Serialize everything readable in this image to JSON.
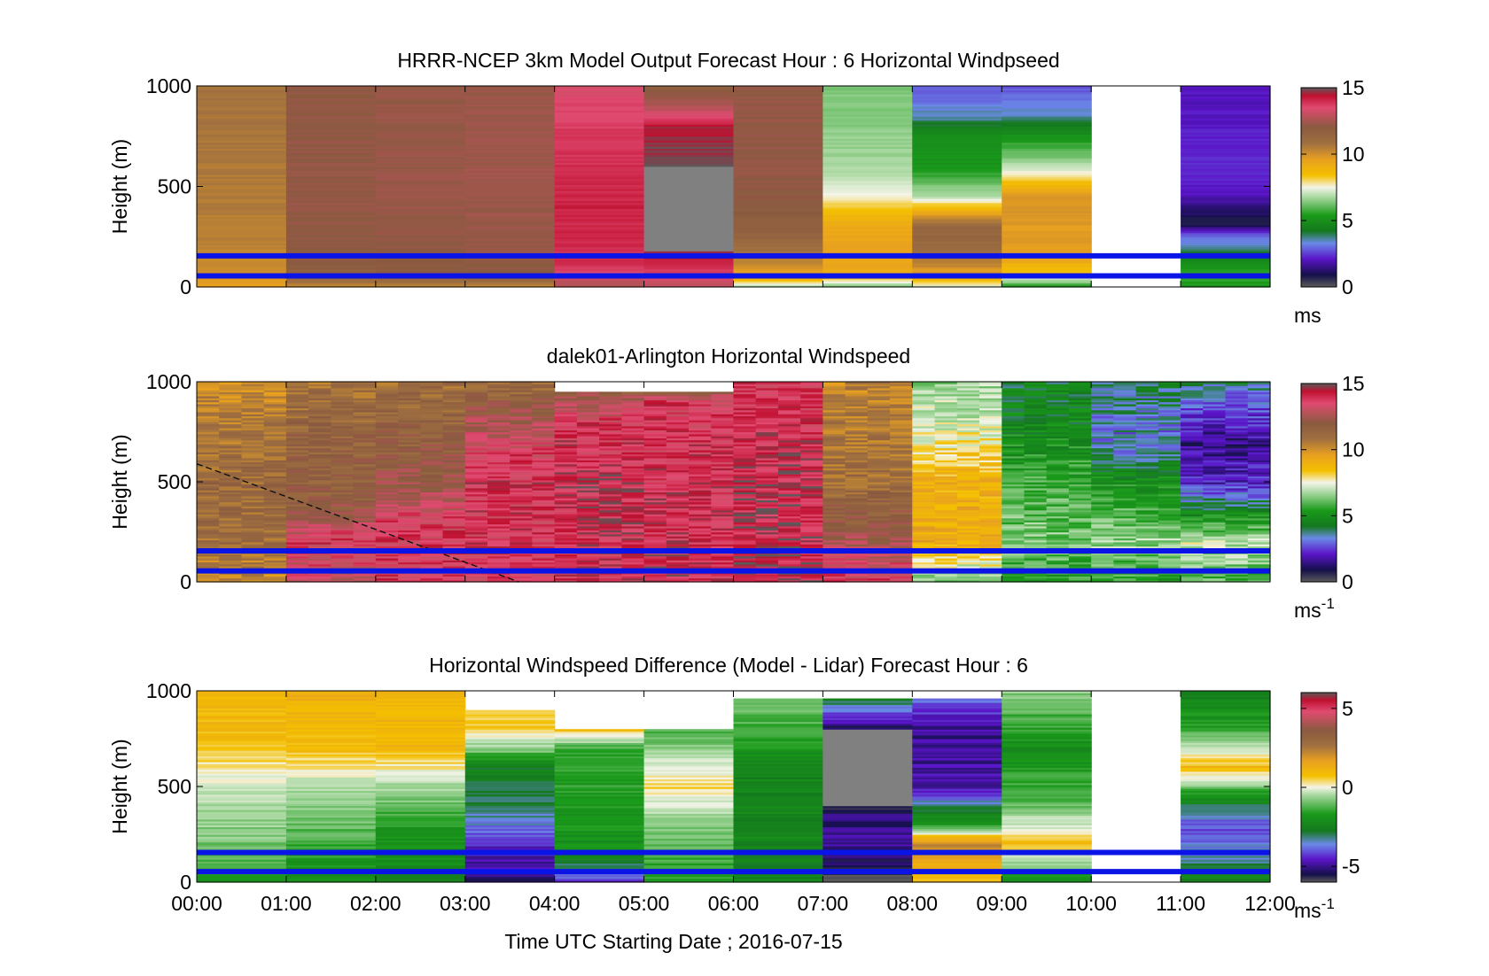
{
  "figure": {
    "xlabel": "Time UTC  Starting Date ; 2016-07-15",
    "x_ticks": [
      "00:00",
      "01:00",
      "02:00",
      "03:00",
      "04:00",
      "05:00",
      "06:00",
      "07:00",
      "08:00",
      "09:00",
      "10:00",
      "11:00",
      "12:00"
    ]
  },
  "chart_data": [
    {
      "type": "heatmap",
      "title": "HRRR-NCEP 3km Model Output   Forecast Hour : 6 Horizontal Windpseed",
      "ylabel": "Height (m)",
      "yticks": [
        "0",
        "500",
        "1000"
      ],
      "ylim": [
        0,
        1000
      ],
      "xlim_hours": [
        0,
        12
      ],
      "colorbar": {
        "ticks": [
          "0",
          "5",
          "10",
          "15"
        ],
        "range": [
          0,
          15
        ],
        "unit_main": "ms",
        "unit_sup": ""
      },
      "marker_lines_height_m": [
        55,
        155
      ],
      "marker_line_color": "#0a14e6",
      "columns": [
        {
          "start_hour": 0,
          "end_hour": 1,
          "profile_ms": [
            [
              0,
              9.5
            ],
            [
              60,
              9.8
            ],
            [
              160,
              10.2
            ],
            [
              400,
              10.5
            ],
            [
              700,
              10.6
            ],
            [
              1000,
              10.8
            ]
          ]
        },
        {
          "start_hour": 1,
          "end_hour": 2,
          "profile_ms": [
            [
              0,
              10.0
            ],
            [
              60,
              11.8
            ],
            [
              160,
              12.0
            ],
            [
              500,
              12.2
            ],
            [
              1000,
              12.1
            ]
          ]
        },
        {
          "start_hour": 2,
          "end_hour": 3,
          "profile_ms": [
            [
              0,
              10.0
            ],
            [
              60,
              11.9
            ],
            [
              160,
              12.1
            ],
            [
              500,
              12.3
            ],
            [
              1000,
              12.2
            ]
          ]
        },
        {
          "start_hour": 3,
          "end_hour": 4,
          "profile_ms": [
            [
              0,
              10.0
            ],
            [
              60,
              12.0
            ],
            [
              160,
              12.2
            ],
            [
              500,
              12.4
            ],
            [
              1000,
              12.3
            ]
          ]
        },
        {
          "start_hour": 4,
          "end_hour": 5,
          "profile_ms": [
            [
              0,
              12.5
            ],
            [
              100,
              14.0
            ],
            [
              400,
              14.2
            ],
            [
              650,
              14.0
            ],
            [
              900,
              13.6
            ],
            [
              1000,
              13.4
            ]
          ]
        },
        {
          "start_hour": 5,
          "end_hour": 6,
          "profile_ms": [
            [
              0,
              13.0
            ],
            [
              150,
              14.5
            ],
            [
              180,
              14.8
            ],
            [
              500,
              null
            ],
            [
              600,
              15.0
            ],
            [
              800,
              14.5
            ],
            [
              900,
              12.8
            ],
            [
              1000,
              11.6
            ]
          ]
        },
        {
          "start_hour": 6,
          "end_hour": 7,
          "profile_ms": [
            [
              0,
              6.5
            ],
            [
              60,
              9.4
            ],
            [
              160,
              10.6
            ],
            [
              300,
              11.8
            ],
            [
              600,
              12.2
            ],
            [
              1000,
              12.2
            ]
          ]
        },
        {
          "start_hour": 7,
          "end_hour": 8,
          "profile_ms": [
            [
              0,
              6.0
            ],
            [
              60,
              9.0
            ],
            [
              160,
              9.5
            ],
            [
              300,
              9.2
            ],
            [
              450,
              7.5
            ],
            [
              600,
              6.6
            ],
            [
              800,
              6.3
            ],
            [
              1000,
              6.2
            ]
          ]
        },
        {
          "start_hour": 8,
          "end_hour": 9,
          "profile_ms": [
            [
              0,
              7.0
            ],
            [
              60,
              9.3
            ],
            [
              160,
              11.0
            ],
            [
              300,
              11.4
            ],
            [
              450,
              6.8
            ],
            [
              600,
              5.0
            ],
            [
              750,
              4.8
            ],
            [
              850,
              3.4
            ],
            [
              1000,
              2.6
            ]
          ]
        },
        {
          "start_hour": 9,
          "end_hour": 10,
          "profile_ms": [
            [
              0,
              5.0
            ],
            [
              60,
              8.0
            ],
            [
              160,
              9.5
            ],
            [
              450,
              9.8
            ],
            [
              600,
              6.8
            ],
            [
              750,
              5.0
            ],
            [
              850,
              3.4
            ],
            [
              1000,
              2.6
            ]
          ]
        },
        {
          "start_hour": 10,
          "end_hour": 11,
          "profile_ms": []
        },
        {
          "start_hour": 11,
          "end_hour": 12,
          "profile_ms": [
            [
              0,
              5.0
            ],
            [
              60,
              5.5
            ],
            [
              160,
              4.0
            ],
            [
              250,
              3.0
            ],
            [
              320,
              0.5
            ],
            [
              450,
              1.8
            ],
            [
              600,
              2.3
            ],
            [
              800,
              2.0
            ],
            [
              1000,
              1.9
            ]
          ]
        }
      ]
    },
    {
      "type": "heatmap",
      "title": "dalek01-Arlington  Horizontal Windspeed",
      "ylabel": "Height (m)",
      "yticks": [
        "0",
        "500",
        "1000"
      ],
      "ylim": [
        0,
        1000
      ],
      "xlim_hours": [
        0,
        12
      ],
      "colorbar": {
        "ticks": [
          "0",
          "5",
          "10",
          "15"
        ],
        "range": [
          0,
          15
        ],
        "unit_main": "ms",
        "unit_sup": "-1"
      },
      "marker_lines_height_m": [
        55,
        155
      ],
      "marker_line_color": "#0a14e6",
      "dashed_line": {
        "from": [
          0,
          590
        ],
        "to": [
          3.6,
          0
        ]
      },
      "columns": [
        {
          "start_hour": 0,
          "end_hour": 1,
          "profile_ms": [
            [
              0,
              10.0
            ],
            [
              200,
              11.0
            ],
            [
              500,
              11.2
            ],
            [
              800,
              10.5
            ],
            [
              1000,
              10.0
            ]
          ]
        },
        {
          "start_hour": 1,
          "end_hour": 2,
          "profile_ms": [
            [
              0,
              13.0
            ],
            [
              200,
              13.8
            ],
            [
              400,
              11.8
            ],
            [
              700,
              11.5
            ],
            [
              1000,
              10.8
            ]
          ]
        },
        {
          "start_hour": 2,
          "end_hour": 3,
          "profile_ms": [
            [
              0,
              13.8
            ],
            [
              300,
              13.8
            ],
            [
              500,
              12.2
            ],
            [
              800,
              11.5
            ],
            [
              1000,
              11.0
            ]
          ]
        },
        {
          "start_hour": 3,
          "end_hour": 4,
          "profile_ms": [
            [
              0,
              13.8
            ],
            [
              600,
              14.0
            ],
            [
              800,
              12.6
            ],
            [
              1000,
              11.0
            ]
          ]
        },
        {
          "start_hour": 4,
          "end_hour": 5,
          "profile_ms": [
            [
              0,
              14.0
            ],
            [
              500,
              14.2
            ],
            [
              800,
              13.8
            ],
            [
              950,
              12.0
            ]
          ]
        },
        {
          "start_hour": 5,
          "end_hour": 6,
          "profile_ms": [
            [
              0,
              14.2
            ],
            [
              500,
              14.0
            ],
            [
              900,
              13.8
            ],
            [
              950,
              12.0
            ]
          ]
        },
        {
          "start_hour": 6,
          "end_hour": 7,
          "profile_ms": [
            [
              0,
              14.4
            ],
            [
              500,
              14.3
            ],
            [
              800,
              14.0
            ],
            [
              1000,
              13.8
            ]
          ]
        },
        {
          "start_hour": 7,
          "end_hour": 8,
          "profile_ms": [
            [
              0,
              13.8
            ],
            [
              300,
              12.0
            ],
            [
              500,
              11.0
            ],
            [
              800,
              10.5
            ],
            [
              1000,
              10.2
            ]
          ]
        },
        {
          "start_hour": 8,
          "end_hour": 9,
          "profile_ms": [
            [
              0,
              6.0
            ],
            [
              200,
              9.0
            ],
            [
              500,
              8.8
            ],
            [
              800,
              7.0
            ],
            [
              1000,
              6.5
            ]
          ]
        },
        {
          "start_hour": 9,
          "end_hour": 10,
          "profile_ms": [
            [
              0,
              5.0
            ],
            [
              200,
              6.2
            ],
            [
              500,
              5.5
            ],
            [
              800,
              4.5
            ],
            [
              1000,
              4.2
            ]
          ]
        },
        {
          "start_hour": 10,
          "end_hour": 11,
          "profile_ms": [
            [
              0,
              5.2
            ],
            [
              200,
              6.5
            ],
            [
              500,
              4.8
            ],
            [
              700,
              3.0
            ],
            [
              1000,
              3.8
            ]
          ]
        },
        {
          "start_hour": 11,
          "end_hour": 12,
          "profile_ms": [
            [
              0,
              5.6
            ],
            [
              200,
              7.0
            ],
            [
              500,
              2.0
            ],
            [
              700,
              1.4
            ],
            [
              1000,
              3.6
            ]
          ]
        }
      ]
    },
    {
      "type": "heatmap",
      "title": "Horizontal Windspeed Difference (Model - Lidar) Forecast Hour : 6",
      "ylabel": "Height (m)",
      "yticks": [
        "0",
        "500",
        "1000"
      ],
      "ylim": [
        0,
        1000
      ],
      "xlim_hours": [
        0,
        12
      ],
      "colorbar": {
        "ticks": [
          "-5",
          "0",
          "5"
        ],
        "range": [
          -6,
          6
        ],
        "unit_main": "ms",
        "unit_sup": "-1"
      },
      "marker_lines_height_m": [
        55,
        155
      ],
      "marker_line_color": "#0a14e6",
      "columns": [
        {
          "start_hour": 0,
          "end_hour": 1,
          "profile_diff": [
            [
              0,
              -2.2
            ],
            [
              200,
              -1.2
            ],
            [
              400,
              -0.8
            ],
            [
              600,
              0.2
            ],
            [
              800,
              1.0
            ],
            [
              1000,
              0.8
            ]
          ]
        },
        {
          "start_hour": 1,
          "end_hour": 2,
          "profile_diff": [
            [
              0,
              -2.4
            ],
            [
              300,
              -1.4
            ],
            [
              500,
              -0.6
            ],
            [
              700,
              0.9
            ],
            [
              1000,
              1.2
            ]
          ]
        },
        {
          "start_hour": 2,
          "end_hour": 3,
          "profile_diff": [
            [
              0,
              -2.6
            ],
            [
              300,
              -2.0
            ],
            [
              500,
              -0.8
            ],
            [
              700,
              1.0
            ],
            [
              1000,
              1.1
            ]
          ]
        },
        {
          "start_hour": 3,
          "end_hour": 4,
          "profile_diff": [
            [
              0,
              -5.4
            ],
            [
              200,
              -4.6
            ],
            [
              400,
              -3.2
            ],
            [
              600,
              -2.8
            ],
            [
              800,
              0.6
            ],
            [
              900,
              0.6
            ]
          ]
        },
        {
          "start_hour": 4,
          "end_hour": 5,
          "profile_diff": [
            [
              0,
              -4.6
            ],
            [
              150,
              -2.4
            ],
            [
              400,
              -2.0
            ],
            [
              700,
              -1.8
            ],
            [
              800,
              0.8
            ]
          ]
        },
        {
          "start_hour": 5,
          "end_hour": 6,
          "profile_diff": [
            [
              0,
              -2.0
            ],
            [
              300,
              -1.2
            ],
            [
              500,
              0.4
            ],
            [
              800,
              -1.6
            ]
          ]
        },
        {
          "start_hour": 6,
          "end_hour": 7,
          "profile_diff": [
            [
              0,
              -2.8
            ],
            [
              300,
              -2.6
            ],
            [
              500,
              -2.8
            ],
            [
              800,
              -1.8
            ],
            [
              960,
              -1.0
            ]
          ]
        },
        {
          "start_hour": 7,
          "end_hour": 8,
          "profile_diff": [
            [
              0,
              -6.0
            ],
            [
              200,
              -5.0
            ],
            [
              400,
              -5.5
            ],
            [
              660,
              null
            ],
            [
              800,
              -5.6
            ],
            [
              960,
              -3.0
            ]
          ]
        },
        {
          "start_hour": 8,
          "end_hour": 9,
          "profile_diff": [
            [
              0,
              0.8
            ],
            [
              200,
              2.2
            ],
            [
              300,
              -1.8
            ],
            [
              500,
              -5.0
            ],
            [
              800,
              -5.2
            ],
            [
              960,
              -4.0
            ]
          ]
        },
        {
          "start_hour": 9,
          "end_hour": 10,
          "profile_diff": [
            [
              0,
              -2.6
            ],
            [
              200,
              0.8
            ],
            [
              400,
              -1.4
            ],
            [
              700,
              -2.4
            ],
            [
              1000,
              -1.0
            ]
          ]
        },
        {
          "start_hour": 10,
          "end_hour": 11,
          "profile_diff": []
        },
        {
          "start_hour": 11,
          "end_hour": 12,
          "profile_diff": [
            [
              0,
              -2.6
            ],
            [
              150,
              -3.6
            ],
            [
              300,
              -4.4
            ],
            [
              450,
              -2.4
            ],
            [
              600,
              1.0
            ],
            [
              800,
              -1.8
            ],
            [
              1000,
              -2.8
            ]
          ]
        }
      ]
    }
  ]
}
